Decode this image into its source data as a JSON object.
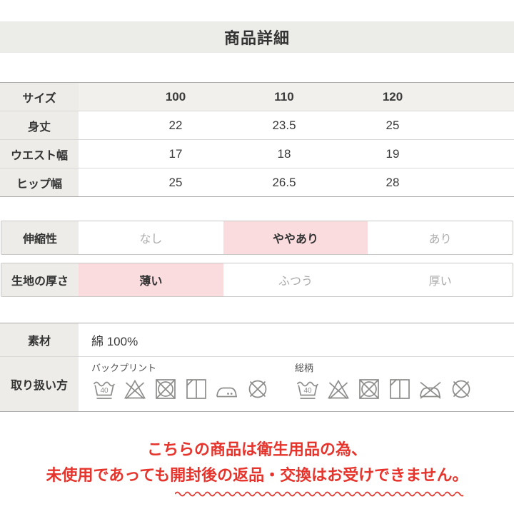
{
  "page": {
    "title": "商品詳細"
  },
  "colors": {
    "band_bg": "#ECECE8",
    "label_bg": "#EDECE8",
    "highlight_pink": "#FADCDE",
    "inactive_text": "#ABABAB",
    "notice_red": "#E6342C",
    "icon_gray": "#8C8C8A"
  },
  "size_table": {
    "header": {
      "label": "サイズ",
      "values": [
        "100",
        "110",
        "120"
      ]
    },
    "rows": [
      {
        "label": "身丈",
        "values": [
          "22",
          "23.5",
          "25"
        ]
      },
      {
        "label": "ウエスト幅",
        "values": [
          "17",
          "18",
          "19"
        ]
      },
      {
        "label": "ヒップ幅",
        "values": [
          "25",
          "26.5",
          "28"
        ]
      }
    ]
  },
  "attributes": [
    {
      "label": "伸縮性",
      "options": [
        "なし",
        "ややあり",
        "あり"
      ],
      "active_index": 1,
      "active_option": "ややあり"
    },
    {
      "label": "生地の厚さ",
      "options": [
        "薄い",
        "ふつう",
        "厚い"
      ],
      "active_index": 0,
      "active_option": "薄い"
    }
  ],
  "details": {
    "material": {
      "label": "素材",
      "value": "綿 100%"
    },
    "care": {
      "label": "取り扱い方",
      "sets": [
        {
          "caption": "バックプリント",
          "icons": [
            "wash-40-icon",
            "no-bleach-icon",
            "no-tumble-dry-icon",
            "line-dry-shade-icon",
            "iron-medium-icon",
            "no-dry-clean-icon"
          ]
        },
        {
          "caption": "総柄",
          "icons": [
            "wash-40-icon",
            "no-bleach-icon",
            "no-tumble-dry-icon",
            "line-dry-shade-icon",
            "no-iron-icon",
            "no-dry-clean-icon"
          ]
        }
      ]
    }
  },
  "notice": {
    "line1": "こちらの商品は衛生用品の為、",
    "line2": "未使用であっても開封後の返品・交換はお受けできません。"
  }
}
